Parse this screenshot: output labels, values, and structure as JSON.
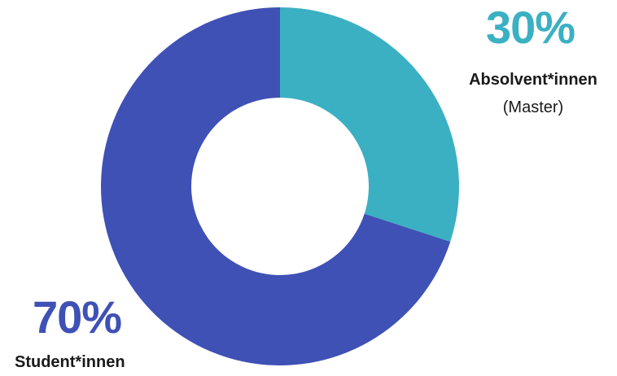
{
  "chart_data": {
    "type": "pie",
    "variant": "donut",
    "slices": [
      {
        "label": "Absolvent*innen",
        "sublabel": "(Master)",
        "value": 30,
        "display_value": "30%",
        "color": "#3cb0c3"
      },
      {
        "label": "Student*innen",
        "sublabel": "",
        "value": 70,
        "display_value": "70%",
        "color": "#3f51b5"
      }
    ],
    "start_angle": "12 o'clock",
    "direction": "clockwise"
  }
}
